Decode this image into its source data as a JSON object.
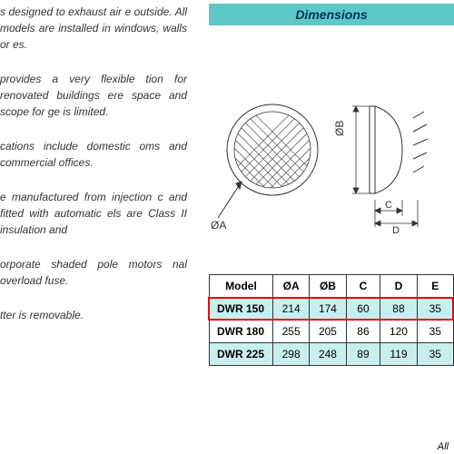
{
  "text": {
    "p1": "s designed to exhaust air e outside. All models are installed in windows, walls or es.",
    "p2": "provides a very flexible tion for renovated buildings ere space and scope for ge is limited.",
    "p3": "cations include domestic oms and commercial offices.",
    "p4": "e manufactured from injection c and fitted with automatic els are Class II insulation and",
    "p5": "orporate shaded pole motors nal overload fuse.",
    "p6": "tter is removable."
  },
  "header": {
    "title": "Dimensions"
  },
  "diagram": {
    "labels": {
      "oa": "ØA",
      "ob": "ØB",
      "c": "C",
      "d": "D"
    },
    "colors": {
      "stroke": "#333333",
      "fill": "#ffffff",
      "hatch": "#888888"
    }
  },
  "table": {
    "columns": [
      "Model",
      "ØA",
      "ØB",
      "C",
      "D",
      "E"
    ],
    "rows": [
      {
        "model": "DWR 150",
        "a": "214",
        "b": "174",
        "c": "60",
        "d": "88",
        "e": "35",
        "hl": true,
        "red": true
      },
      {
        "model": "DWR 180",
        "a": "255",
        "b": "205",
        "c": "86",
        "d": "120",
        "e": "35",
        "hl": false
      },
      {
        "model": "DWR 225",
        "a": "298",
        "b": "248",
        "c": "89",
        "d": "119",
        "e": "35",
        "hl": true
      }
    ],
    "col_widths": [
      "26%",
      "15%",
      "15%",
      "14%",
      "15%",
      "15%"
    ],
    "header_bg": "#ffffff",
    "hl_bg": "#c9eeee",
    "border": "#333333",
    "red": "#ee0000",
    "font_size": 12
  },
  "footnote": "All"
}
